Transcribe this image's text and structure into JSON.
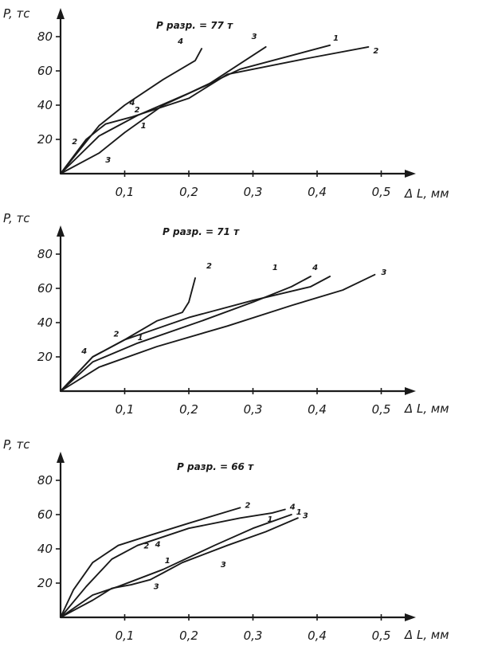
{
  "chart_data": [
    {
      "type": "line",
      "title": "P разр. = 77 т",
      "ylabel": "P, тс",
      "xlabel": "Δ L, мм",
      "xlim": [
        0,
        0.55
      ],
      "ylim": [
        0,
        95
      ],
      "x_ticks": [
        "0,1",
        "0,2",
        "0,3",
        "0,4",
        "0,5"
      ],
      "y_ticks": [
        "20",
        "40",
        "60",
        "80"
      ],
      "series": [
        {
          "name": "1",
          "points": [
            [
              0,
              0
            ],
            [
              0.06,
              22
            ],
            [
              0.12,
              34
            ],
            [
              0.2,
              47
            ],
            [
              0.28,
              61
            ],
            [
              0.36,
              69
            ],
            [
              0.42,
              75
            ]
          ]
        },
        {
          "name": "2",
          "points": [
            [
              0,
              0
            ],
            [
              0.04,
              20
            ],
            [
              0.07,
              29
            ],
            [
              0.11,
              33
            ],
            [
              0.2,
              44
            ],
            [
              0.26,
              58
            ],
            [
              0.38,
              67
            ],
            [
              0.48,
              74
            ]
          ]
        },
        {
          "name": "3",
          "points": [
            [
              0,
              0
            ],
            [
              0.06,
              12
            ],
            [
              0.1,
              24
            ],
            [
              0.16,
              40
            ],
            [
              0.23,
              52
            ],
            [
              0.32,
              74
            ]
          ]
        },
        {
          "name": "4",
          "points": [
            [
              0,
              0
            ],
            [
              0.06,
              28
            ],
            [
              0.1,
              40
            ],
            [
              0.16,
              55
            ],
            [
              0.21,
              66
            ],
            [
              0.22,
              73
            ]
          ]
        }
      ]
    },
    {
      "type": "line",
      "title": "P разр. = 71 т",
      "ylabel": "P, тс",
      "xlabel": "Δ L, мм",
      "xlim": [
        0,
        0.55
      ],
      "ylim": [
        0,
        95
      ],
      "x_ticks": [
        "0,1",
        "0,2",
        "0,3",
        "0,4",
        "0,5"
      ],
      "y_ticks": [
        "20",
        "40",
        "60",
        "80"
      ],
      "series": [
        {
          "name": "1",
          "points": [
            [
              0,
              0
            ],
            [
              0.05,
              17
            ],
            [
              0.12,
              28
            ],
            [
              0.22,
              41
            ],
            [
              0.3,
              52
            ],
            [
              0.36,
              61
            ],
            [
              0.39,
              67
            ]
          ]
        },
        {
          "name": "2",
          "points": [
            [
              0,
              0
            ],
            [
              0.05,
              20
            ],
            [
              0.1,
              30
            ],
            [
              0.15,
              41
            ],
            [
              0.19,
              46
            ],
            [
              0.2,
              52
            ],
            [
              0.21,
              66
            ]
          ]
        },
        {
          "name": "3",
          "points": [
            [
              0,
              0
            ],
            [
              0.06,
              14
            ],
            [
              0.15,
              26
            ],
            [
              0.26,
              38
            ],
            [
              0.36,
              50
            ],
            [
              0.44,
              59
            ],
            [
              0.49,
              68
            ]
          ]
        },
        {
          "name": "4",
          "points": [
            [
              0,
              0
            ],
            [
              0.05,
              20
            ],
            [
              0.1,
              30
            ],
            [
              0.2,
              43
            ],
            [
              0.3,
              53
            ],
            [
              0.39,
              61
            ],
            [
              0.42,
              67
            ]
          ]
        }
      ]
    },
    {
      "type": "line",
      "title": "P разр. = 66 т",
      "ylabel": "P, тс",
      "xlabel": "Δ L, мм",
      "xlim": [
        0,
        0.55
      ],
      "ylim": [
        0,
        95
      ],
      "x_ticks": [
        "0,1",
        "0,2",
        "0,3",
        "0,4",
        "0,5"
      ],
      "y_ticks": [
        "20",
        "40",
        "60",
        "80"
      ],
      "series": [
        {
          "name": "1",
          "points": [
            [
              0,
              0
            ],
            [
              0.05,
              13
            ],
            [
              0.09,
              18
            ],
            [
              0.16,
              28
            ],
            [
              0.24,
              42
            ],
            [
              0.3,
              52
            ],
            [
              0.36,
              60
            ]
          ]
        },
        {
          "name": "2",
          "points": [
            [
              0,
              0
            ],
            [
              0.02,
              16
            ],
            [
              0.05,
              32
            ],
            [
              0.09,
              42
            ],
            [
              0.14,
              48
            ],
            [
              0.2,
              55
            ],
            [
              0.28,
              64
            ]
          ]
        },
        {
          "name": "3",
          "points": [
            [
              0,
              0
            ],
            [
              0.05,
              10
            ],
            [
              0.08,
              17
            ],
            [
              0.11,
              19
            ],
            [
              0.14,
              22
            ],
            [
              0.16,
              26
            ],
            [
              0.19,
              32
            ],
            [
              0.26,
              42
            ],
            [
              0.32,
              50
            ],
            [
              0.37,
              58
            ]
          ]
        },
        {
          "name": "4",
          "points": [
            [
              0,
              0
            ],
            [
              0.04,
              18
            ],
            [
              0.08,
              34
            ],
            [
              0.12,
              42
            ],
            [
              0.2,
              52
            ],
            [
              0.28,
              58
            ],
            [
              0.33,
              61
            ],
            [
              0.35,
              63
            ]
          ]
        }
      ]
    }
  ]
}
